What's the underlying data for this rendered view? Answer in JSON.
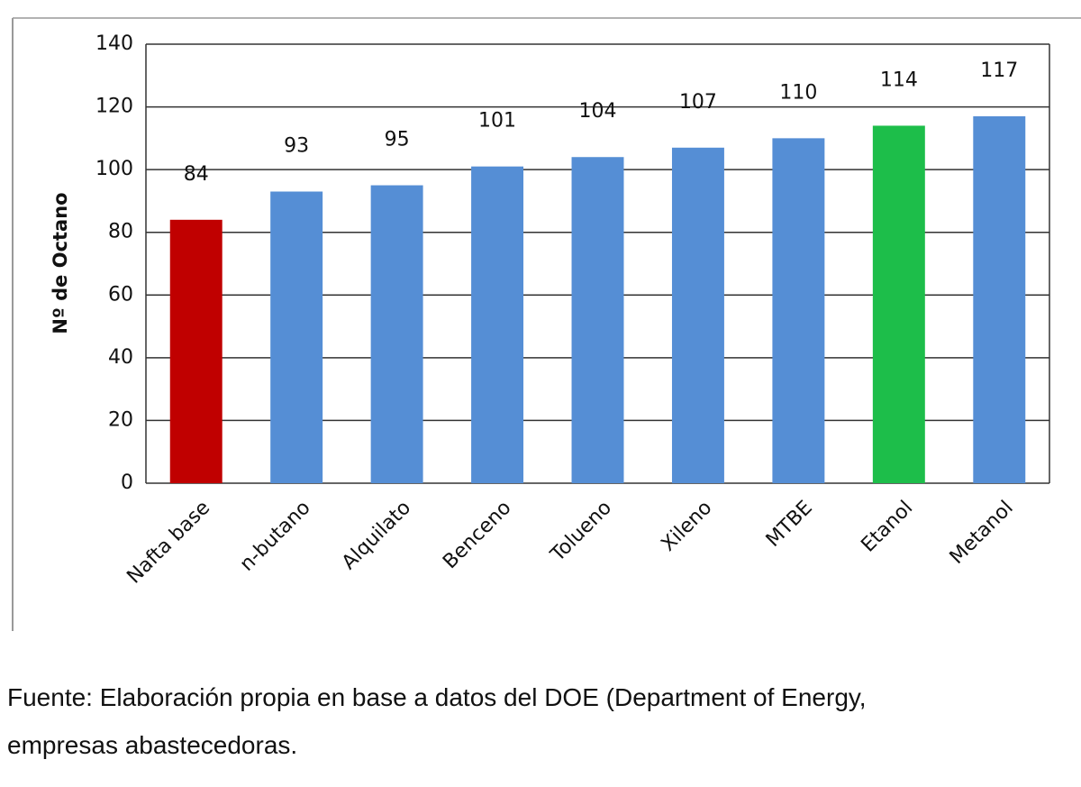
{
  "chart_data": {
    "type": "bar",
    "y_label": "Nº de Octano",
    "categories": [
      "Nafta base",
      "n-butano",
      "Alquilato",
      "Benceno",
      "Tolueno",
      "Xileno",
      "MTBE",
      "Etanol",
      "Metanol"
    ],
    "values": [
      84,
      93,
      95,
      101,
      104,
      107,
      110,
      114,
      117
    ],
    "colors": [
      "#c00000",
      "#558ed5",
      "#558ed5",
      "#558ed5",
      "#558ed5",
      "#558ed5",
      "#558ed5",
      "#1dbe4a",
      "#558ed5"
    ],
    "ylim": [
      0,
      140
    ],
    "yticks": [
      0,
      20,
      40,
      60,
      80,
      100,
      120,
      140
    ],
    "grid": true,
    "source": [
      "Fuente: Elaboración propia en base a datos del DOE (Department of Energy,",
      "empresas abastecedoras."
    ]
  }
}
